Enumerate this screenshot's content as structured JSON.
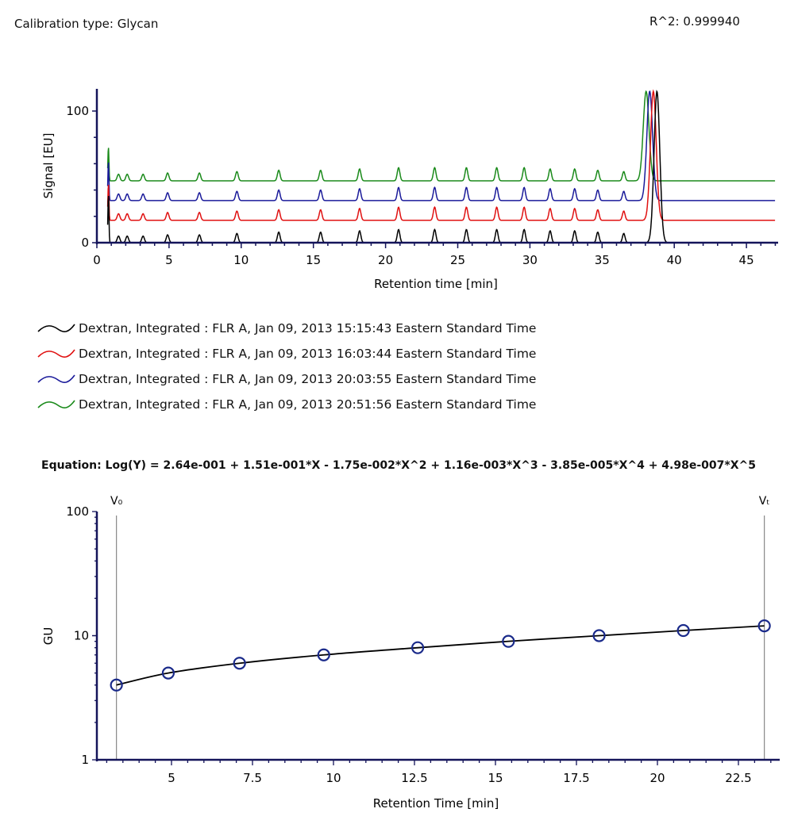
{
  "header": {
    "calibration_type": "Calibration type:  Glycan",
    "r_squared": "R^2:  0.999940"
  },
  "equation": "Equation: Log(Y) = 2.64e-001 + 1.51e-001*X - 1.75e-002*X^2 + 1.16e-003*X^3 - 3.85e-005*X^4 + 4.98e-007*X^5",
  "legend": [
    {
      "label": "Dextran, Integrated : FLR A, Jan 09, 2013 15:15:43 Eastern Standard Time",
      "color": "#000000"
    },
    {
      "label": "Dextran, Integrated : FLR A, Jan 09, 2013 16:03:44 Eastern Standard Time",
      "color": "#e01010"
    },
    {
      "label": "Dextran, Integrated : FLR A, Jan 09, 2013 20:03:55 Eastern Standard Time",
      "color": "#1a1a9a"
    },
    {
      "label": "Dextran, Integrated : FLR A, Jan 09, 2013 20:51:56 Eastern Standard Time",
      "color": "#1a8a1a"
    }
  ],
  "chart_data": [
    {
      "type": "line",
      "xlabel": "Retention time [min]",
      "ylabel": "Signal [EU]",
      "xlim": [
        0,
        47
      ],
      "ylim": [
        0,
        115
      ],
      "xticks": [
        "0",
        "5",
        "10",
        "15",
        "20",
        "25",
        "30",
        "35",
        "40",
        "45"
      ],
      "yticks": [
        "0",
        "100"
      ],
      "grid": false,
      "legend_placement": "below",
      "series_offsets": [
        0,
        17,
        32,
        47
      ],
      "peaks_rt": [
        0.8,
        1.5,
        2.1,
        3.2,
        4.9,
        7.1,
        9.7,
        12.6,
        15.5,
        18.2,
        20.9,
        23.4,
        25.6,
        27.7,
        29.6,
        31.4,
        33.1,
        34.7,
        36.5,
        38.8
      ],
      "peaks_height": [
        [
          37,
          5,
          5,
          5,
          6,
          6,
          7,
          8,
          8,
          9,
          10,
          10,
          10,
          10,
          10,
          9,
          9,
          8,
          7,
          115
        ],
        [
          28,
          5,
          5,
          5,
          6,
          6,
          7,
          8,
          8,
          9,
          10,
          10,
          10,
          10,
          10,
          9,
          9,
          8,
          7,
          98
        ],
        [
          30,
          5,
          5,
          5,
          6,
          6,
          7,
          8,
          8,
          9,
          10,
          10,
          10,
          10,
          10,
          9,
          9,
          8,
          7,
          83
        ],
        [
          26,
          5,
          5,
          5,
          6,
          6,
          7,
          8,
          8,
          9,
          10,
          10,
          10,
          10,
          10,
          9,
          9,
          8,
          7,
          68
        ]
      ]
    },
    {
      "type": "scatter",
      "xlabel": "Retention Time [min]",
      "ylabel": "GU",
      "xlim": [
        2.7,
        23.8
      ],
      "ylim": [
        1,
        100
      ],
      "yscale": "log",
      "xticks": [
        "5",
        "7.5",
        "10",
        "12.5",
        "15",
        "17.5",
        "20",
        "22.5"
      ],
      "yticks": [
        "1",
        "10",
        "100"
      ],
      "grid": false,
      "x": [
        3.3,
        4.9,
        7.1,
        9.7,
        12.6,
        15.4,
        18.2,
        20.8,
        23.3
      ],
      "y": [
        4,
        5,
        6,
        7,
        8,
        9,
        10,
        11,
        12
      ],
      "marker_color": "#1a2a8a",
      "fit_line_color": "#000000",
      "markers": [
        {
          "label": "V₀",
          "x": 3.3
        },
        {
          "label": "Vₜ",
          "x": 23.3
        }
      ]
    }
  ]
}
